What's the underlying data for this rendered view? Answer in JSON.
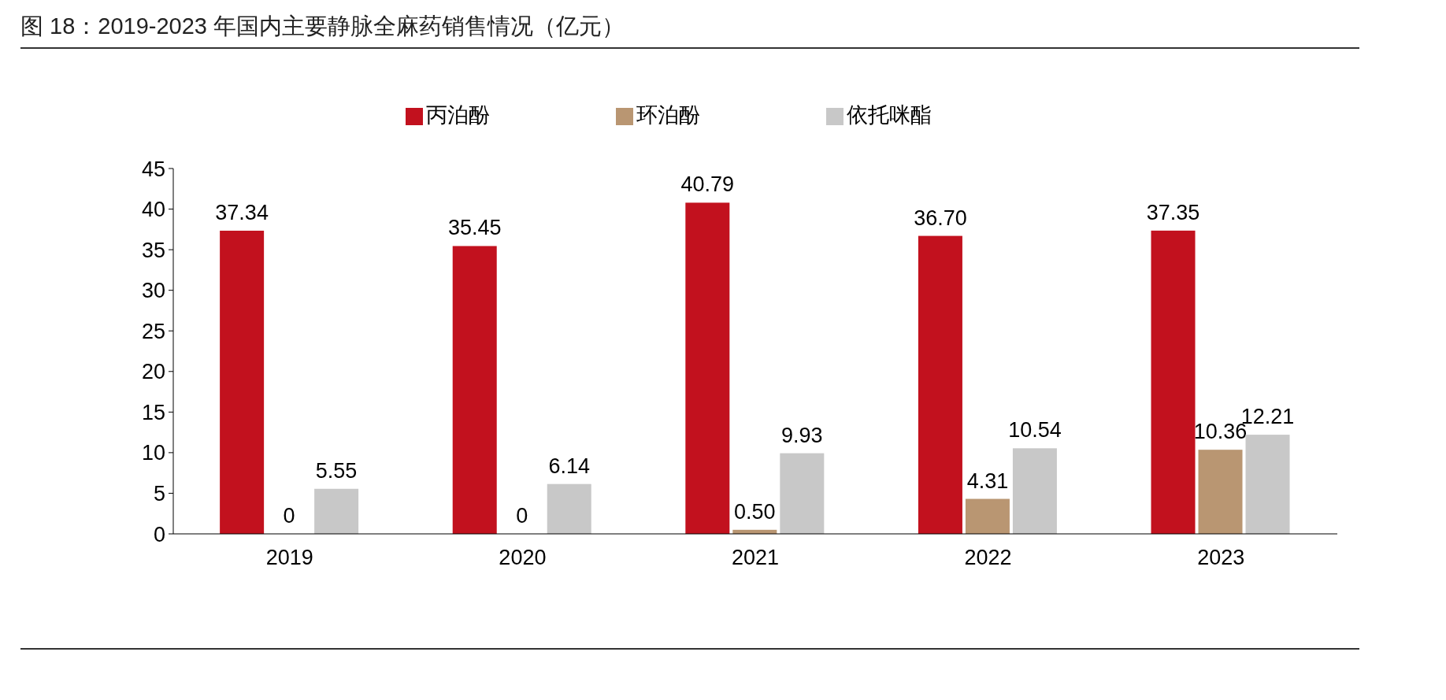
{
  "chart_data": {
    "type": "bar",
    "title": "图 18：2019-2023 年国内主要静脉全麻药销售情况（亿元）",
    "categories": [
      "2019",
      "2020",
      "2021",
      "2022",
      "2023"
    ],
    "series": [
      {
        "name": "丙泊酚",
        "color": "#c2111e",
        "values": [
          37.34,
          35.45,
          40.79,
          36.7,
          37.35
        ],
        "value_labels": [
          "37.34",
          "35.45",
          "40.79",
          "36.70",
          "37.35"
        ]
      },
      {
        "name": "环泊酚",
        "color": "#b99672",
        "values": [
          0,
          0,
          0.5,
          4.31,
          10.36
        ],
        "value_labels": [
          "0",
          "0",
          "0.50",
          "4.31",
          "10.36"
        ]
      },
      {
        "name": "依托咪酯",
        "color": "#c8c8c8",
        "values": [
          5.55,
          6.14,
          9.93,
          10.54,
          12.21
        ],
        "value_labels": [
          "5.55",
          "6.14",
          "9.93",
          "10.54",
          "12.21"
        ]
      }
    ],
    "ylim": [
      0,
      45
    ],
    "yticks": [
      0,
      5,
      10,
      15,
      20,
      25,
      30,
      35,
      40,
      45
    ],
    "grid": false,
    "legend": "top"
  }
}
